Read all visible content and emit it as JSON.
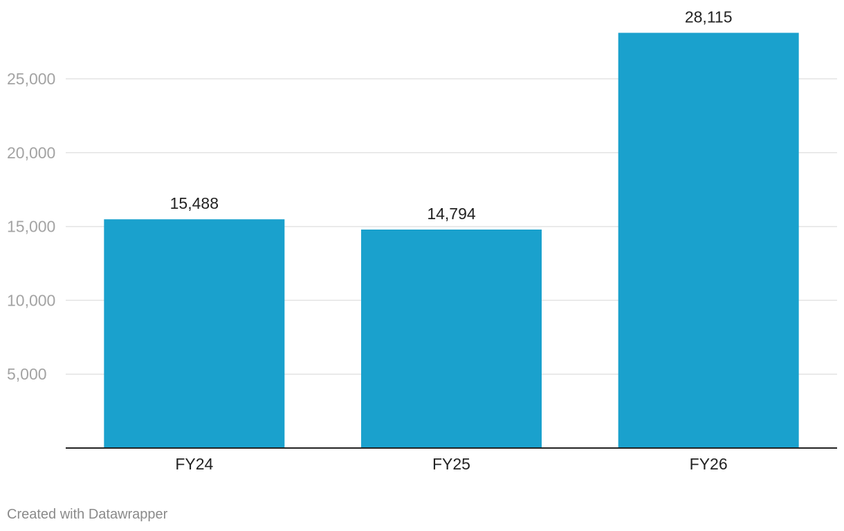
{
  "chart_data": {
    "type": "bar",
    "categories": [
      "FY24",
      "FY25",
      "FY26"
    ],
    "values": [
      15488,
      14794,
      28115
    ],
    "data_labels": [
      "15,488",
      "14,794",
      "28,115"
    ],
    "y_ticks": [
      5000,
      10000,
      15000,
      20000,
      25000
    ],
    "y_tick_labels": [
      "5,000",
      "10,000",
      "15,000",
      "20,000",
      "25,000"
    ],
    "ylim": [
      0,
      30000
    ],
    "grid": true,
    "title": "",
    "xlabel": "",
    "ylabel": ""
  },
  "colors": {
    "bar": "#1aa1cd",
    "grid": "#e3e3e3",
    "axis": "#222222"
  },
  "footer": {
    "credit": "Created with Datawrapper"
  }
}
